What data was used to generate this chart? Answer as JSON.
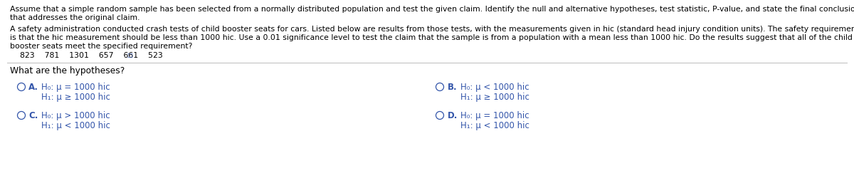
{
  "bg_color": "#ffffff",
  "text_color": "#000000",
  "blue_color": "#3355aa",
  "para1_line1": "Assume that a simple random sample has been selected from a normally distributed population and test the given claim. Identify the null and alternative hypotheses, test statistic, P-value, and state the final conclusion",
  "para1_line2": "that addresses the original claim.",
  "para2_line1": "A safety administration conducted crash tests of child booster seats for cars. Listed below are results from those tests, with the measurements given in hic (standard head injury condition units). The safety requirement",
  "para2_line2": "is that the hic measurement should be less than 1000 hic. Use a 0.01 significance level to test the claim that the sample is from a population with a mean less than 1000 hic. Do the results suggest that all of the child",
  "para2_line3": "booster seats meet the specified requirement?",
  "measurements": "    823    781    1301    657    661    523",
  "question": "What are the hypotheses?",
  "optA_label": "A.",
  "optA_h0": "H₀: μ = 1000 hic",
  "optA_h1": "H₁: μ ≥ 1000 hic",
  "optB_label": "B.",
  "optB_h0": "H₀: μ < 1000 hic",
  "optB_h1": "H₁: μ ≥ 1000 hic",
  "optC_label": "C.",
  "optC_h0": "H₀: μ > 1000 hic",
  "optC_h1": "H₁: μ < 1000 hic",
  "optD_label": "D.",
  "optD_h0": "H₀: μ = 1000 hic",
  "optD_h1": "H₁: μ < 1000 hic",
  "font_size_body": 7.8,
  "font_size_options": 8.5,
  "font_size_question": 8.8
}
